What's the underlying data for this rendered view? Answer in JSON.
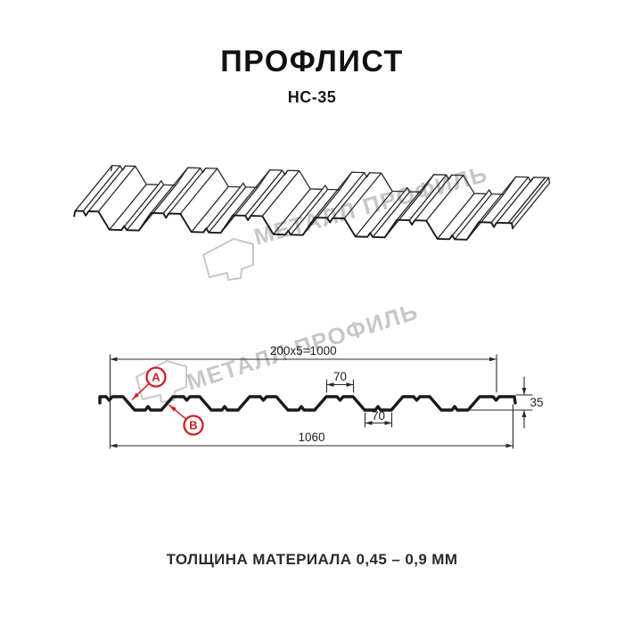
{
  "header": {
    "title": "ПРОФЛИСТ",
    "subtitle": "НС-35"
  },
  "footer": {
    "caption": "ТОЛЩИНА МАТЕРИАЛА 0,45 – 0,9 ММ"
  },
  "watermark": {
    "brand": "МЕТАЛЛ ПРОФИЛЬ",
    "color": "#c8c8c8"
  },
  "drawing": {
    "profile_name": "НС-35",
    "dims": {
      "working_width": "200x5=1000",
      "overall_width": "1060",
      "top_flange_width": "70",
      "bottom_flange_width": "70",
      "profile_height": "35"
    },
    "point_labels": {
      "a": "A",
      "b": "B"
    },
    "colors": {
      "ink": "#2a2a2a",
      "profile_stroke": "#1a1a1a",
      "accent": "#ce2028",
      "dim_text": "#222222"
    }
  }
}
